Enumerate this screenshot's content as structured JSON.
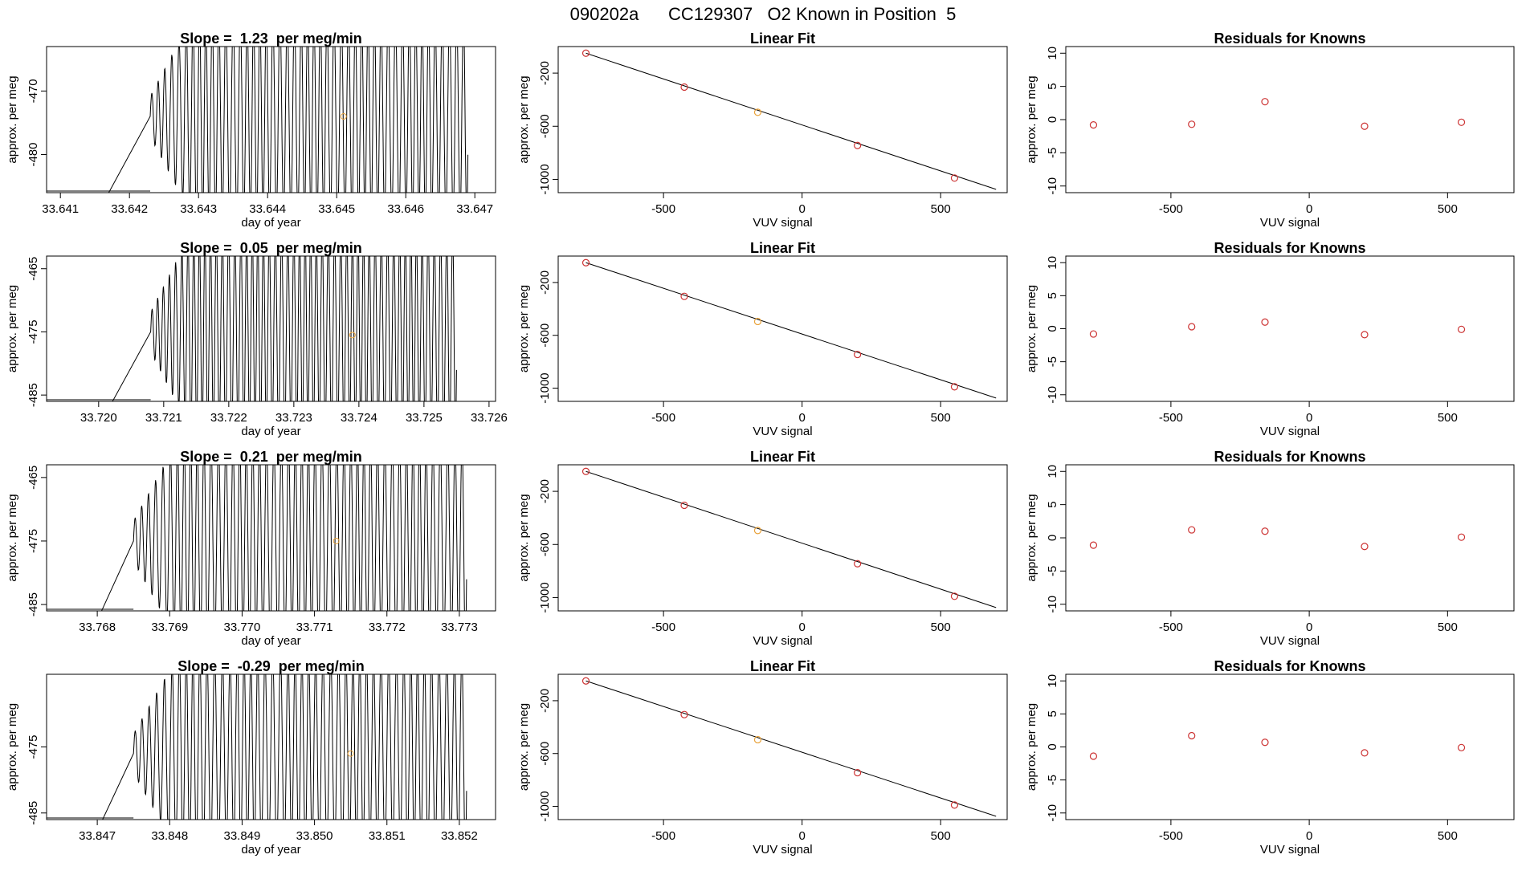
{
  "page_title": "090202a      CC129307   O2 Known in Position  5",
  "colors": {
    "axis": "#000000",
    "trace": "#000000",
    "point": "#cc3333",
    "highlight": "#e8a23a"
  },
  "chart_data": [
    {
      "type": "line",
      "row": 0,
      "col": 0,
      "title": "Slope =  1.23  per meg/min",
      "xlabel": "day of year",
      "ylabel": "approx. per meg",
      "xlim": [
        33.6408,
        33.6473
      ],
      "ylim": [
        -486,
        -463
      ],
      "xticks": [
        "33.641",
        "33.642",
        "33.643",
        "33.644",
        "33.645",
        "33.646",
        "33.647"
      ],
      "xtick_values": [
        33.641,
        33.642,
        33.643,
        33.644,
        33.645,
        33.646,
        33.647
      ],
      "yticks": [
        "-470",
        "-480"
      ],
      "ytick_values": [
        -470,
        -480
      ],
      "trace": {
        "x_start": 33.6423,
        "x_end": 33.6469,
        "cycles": 47,
        "center": -474,
        "amplitude": 16
      },
      "highlight_points": [
        {
          "x": 33.6451,
          "y": -474
        }
      ]
    },
    {
      "type": "scatter",
      "row": 0,
      "col": 1,
      "title": "Linear Fit",
      "xlabel": "VUV signal",
      "ylabel": "approx. per meg",
      "xlim": [
        -880,
        740
      ],
      "ylim": [
        -1100,
        0
      ],
      "xticks": [
        "-500",
        "0",
        "500"
      ],
      "xtick_values": [
        -500,
        0,
        500
      ],
      "yticks": [
        "-200",
        "-600",
        "-1000"
      ],
      "ytick_values": [
        -200,
        -600,
        -1000
      ],
      "points": [
        {
          "x": -780,
          "y": -50
        },
        {
          "x": -425,
          "y": -305
        },
        {
          "x": -160,
          "y": -495
        },
        {
          "x": 200,
          "y": -745
        },
        {
          "x": 550,
          "y": -990
        }
      ],
      "highlight_index": 2,
      "fit_line": [
        {
          "x": -780,
          "y": -50
        },
        {
          "x": 700,
          "y": -1075
        }
      ]
    },
    {
      "type": "scatter",
      "row": 0,
      "col": 2,
      "title": "Residuals for Knowns",
      "xlabel": "VUV signal",
      "ylabel": "approx. per meg",
      "xlim": [
        -880,
        740
      ],
      "ylim": [
        -11,
        11
      ],
      "xticks": [
        "-500",
        "0",
        "500"
      ],
      "xtick_values": [
        -500,
        0,
        500
      ],
      "yticks": [
        "10",
        "5",
        "0",
        "-5",
        "-10"
      ],
      "ytick_values": [
        10,
        5,
        0,
        -5,
        -10
      ],
      "points": [
        {
          "x": -780,
          "y": -0.8
        },
        {
          "x": -425,
          "y": -0.7
        },
        {
          "x": -160,
          "y": 2.7
        },
        {
          "x": 200,
          "y": -1.0
        },
        {
          "x": 550,
          "y": -0.4
        }
      ]
    },
    {
      "type": "line",
      "row": 1,
      "col": 0,
      "title": "Slope =  0.05  per meg/min",
      "xlabel": "day of year",
      "ylabel": "approx. per meg",
      "xlim": [
        33.7192,
        33.7261
      ],
      "ylim": [
        -486,
        -463
      ],
      "xticks": [
        "33.720",
        "33.721",
        "33.722",
        "33.723",
        "33.724",
        "33.725",
        "33.726"
      ],
      "xtick_values": [
        33.72,
        33.721,
        33.722,
        33.723,
        33.724,
        33.725,
        33.726
      ],
      "yticks": [
        "-465",
        "-475",
        "-485"
      ],
      "ytick_values": [
        -465,
        -475,
        -485
      ],
      "trace": {
        "x_start": 33.7208,
        "x_end": 33.7255,
        "cycles": 52,
        "center": -475,
        "amplitude": 16
      },
      "highlight_points": [
        {
          "x": 33.7239,
          "y": -475.5
        }
      ]
    },
    {
      "type": "scatter",
      "row": 1,
      "col": 1,
      "title": "Linear Fit",
      "xlabel": "VUV signal",
      "ylabel": "approx. per meg",
      "xlim": [
        -880,
        740
      ],
      "ylim": [
        -1100,
        0
      ],
      "xticks": [
        "-500",
        "0",
        "500"
      ],
      "xtick_values": [
        -500,
        0,
        500
      ],
      "yticks": [
        "-200",
        "-600",
        "-1000"
      ],
      "ytick_values": [
        -200,
        -600,
        -1000
      ],
      "points": [
        {
          "x": -780,
          "y": -50
        },
        {
          "x": -425,
          "y": -305
        },
        {
          "x": -160,
          "y": -495
        },
        {
          "x": 200,
          "y": -745
        },
        {
          "x": 550,
          "y": -990
        }
      ],
      "highlight_index": 2,
      "fit_line": [
        {
          "x": -780,
          "y": -50
        },
        {
          "x": 700,
          "y": -1075
        }
      ]
    },
    {
      "type": "scatter",
      "row": 1,
      "col": 2,
      "title": "Residuals for Knowns",
      "xlabel": "VUV signal",
      "ylabel": "approx. per meg",
      "xlim": [
        -880,
        740
      ],
      "ylim": [
        -11,
        11
      ],
      "xticks": [
        "-500",
        "0",
        "500"
      ],
      "xtick_values": [
        -500,
        0,
        500
      ],
      "yticks": [
        "10",
        "5",
        "0",
        "-5",
        "-10"
      ],
      "ytick_values": [
        10,
        5,
        0,
        -5,
        -10
      ],
      "points": [
        {
          "x": -780,
          "y": -0.8
        },
        {
          "x": -425,
          "y": 0.3
        },
        {
          "x": -160,
          "y": 1.0
        },
        {
          "x": 200,
          "y": -0.9
        },
        {
          "x": 550,
          "y": -0.1
        }
      ]
    },
    {
      "type": "line",
      "row": 2,
      "col": 0,
      "title": "Slope =  0.21  per meg/min",
      "xlabel": "day of year",
      "ylabel": "approx. per meg",
      "xlim": [
        33.7673,
        33.7735
      ],
      "ylim": [
        -486,
        -463
      ],
      "xticks": [
        "33.768",
        "33.769",
        "33.770",
        "33.771",
        "33.772",
        "33.773"
      ],
      "xtick_values": [
        33.768,
        33.769,
        33.77,
        33.771,
        33.772,
        33.773
      ],
      "yticks": [
        "-465",
        "-475",
        "-485"
      ],
      "ytick_values": [
        -465,
        -475,
        -485
      ],
      "trace": {
        "x_start": 33.7685,
        "x_end": 33.7731,
        "cycles": 48,
        "center": -475,
        "amplitude": 16
      },
      "highlight_points": [
        {
          "x": 33.7713,
          "y": -475
        }
      ]
    },
    {
      "type": "scatter",
      "row": 2,
      "col": 1,
      "title": "Linear Fit",
      "xlabel": "VUV signal",
      "ylabel": "approx. per meg",
      "xlim": [
        -880,
        740
      ],
      "ylim": [
        -1100,
        0
      ],
      "xticks": [
        "-500",
        "0",
        "500"
      ],
      "xtick_values": [
        -500,
        0,
        500
      ],
      "yticks": [
        "-200",
        "-600",
        "-1000"
      ],
      "ytick_values": [
        -200,
        -600,
        -1000
      ],
      "points": [
        {
          "x": -780,
          "y": -50
        },
        {
          "x": -425,
          "y": -305
        },
        {
          "x": -160,
          "y": -495
        },
        {
          "x": 200,
          "y": -745
        },
        {
          "x": 550,
          "y": -990
        }
      ],
      "highlight_index": 2,
      "fit_line": [
        {
          "x": -780,
          "y": -50
        },
        {
          "x": 700,
          "y": -1075
        }
      ]
    },
    {
      "type": "scatter",
      "row": 2,
      "col": 2,
      "title": "Residuals for Knowns",
      "xlabel": "VUV signal",
      "ylabel": "approx. per meg",
      "xlim": [
        -880,
        740
      ],
      "ylim": [
        -11,
        11
      ],
      "xticks": [
        "-500",
        "0",
        "500"
      ],
      "xtick_values": [
        -500,
        0,
        500
      ],
      "yticks": [
        "10",
        "5",
        "0",
        "-5",
        "-10"
      ],
      "ytick_values": [
        10,
        5,
        0,
        -5,
        -10
      ],
      "points": [
        {
          "x": -780,
          "y": -1.1
        },
        {
          "x": -425,
          "y": 1.2
        },
        {
          "x": -160,
          "y": 1.0
        },
        {
          "x": 200,
          "y": -1.3
        },
        {
          "x": 550,
          "y": 0.1
        }
      ]
    },
    {
      "type": "line",
      "row": 3,
      "col": 0,
      "title": "Slope =  -0.29  per meg/min",
      "xlabel": "day of year",
      "ylabel": "approx. per meg",
      "xlim": [
        33.8463,
        33.8525
      ],
      "ylim": [
        -486,
        -464
      ],
      "xticks": [
        "33.847",
        "33.848",
        "33.849",
        "33.850",
        "33.851",
        "33.852"
      ],
      "xtick_values": [
        33.847,
        33.848,
        33.849,
        33.85,
        33.851,
        33.852
      ],
      "yticks": [
        "-475",
        "-485"
      ],
      "ytick_values": [
        -475,
        -485
      ],
      "trace": {
        "x_start": 33.8475,
        "x_end": 33.8521,
        "cycles": 46,
        "center": -476,
        "amplitude": 15
      },
      "highlight_points": [
        {
          "x": 33.8505,
          "y": -476
        }
      ]
    },
    {
      "type": "scatter",
      "row": 3,
      "col": 1,
      "title": "Linear Fit",
      "xlabel": "VUV signal",
      "ylabel": "approx. per meg",
      "xlim": [
        -880,
        740
      ],
      "ylim": [
        -1100,
        0
      ],
      "xticks": [
        "-500",
        "0",
        "500"
      ],
      "xtick_values": [
        -500,
        0,
        500
      ],
      "yticks": [
        "-200",
        "-600",
        "-1000"
      ],
      "ytick_values": [
        -200,
        -600,
        -1000
      ],
      "points": [
        {
          "x": -780,
          "y": -50
        },
        {
          "x": -425,
          "y": -305
        },
        {
          "x": -160,
          "y": -495
        },
        {
          "x": 200,
          "y": -745
        },
        {
          "x": 550,
          "y": -990
        }
      ],
      "highlight_index": 2,
      "fit_line": [
        {
          "x": -780,
          "y": -50
        },
        {
          "x": 700,
          "y": -1075
        }
      ]
    },
    {
      "type": "scatter",
      "row": 3,
      "col": 2,
      "title": "Residuals for Knowns",
      "xlabel": "VUV signal",
      "ylabel": "approx. per meg",
      "xlim": [
        -880,
        740
      ],
      "ylim": [
        -11,
        11
      ],
      "xticks": [
        "-500",
        "0",
        "500"
      ],
      "xtick_values": [
        -500,
        0,
        500
      ],
      "yticks": [
        "10",
        "5",
        "0",
        "-5",
        "-10"
      ],
      "ytick_values": [
        10,
        5,
        0,
        -5,
        -10
      ],
      "points": [
        {
          "x": -780,
          "y": -1.4
        },
        {
          "x": -425,
          "y": 1.7
        },
        {
          "x": -160,
          "y": 0.7
        },
        {
          "x": 200,
          "y": -0.9
        },
        {
          "x": 550,
          "y": -0.1
        }
      ]
    }
  ]
}
